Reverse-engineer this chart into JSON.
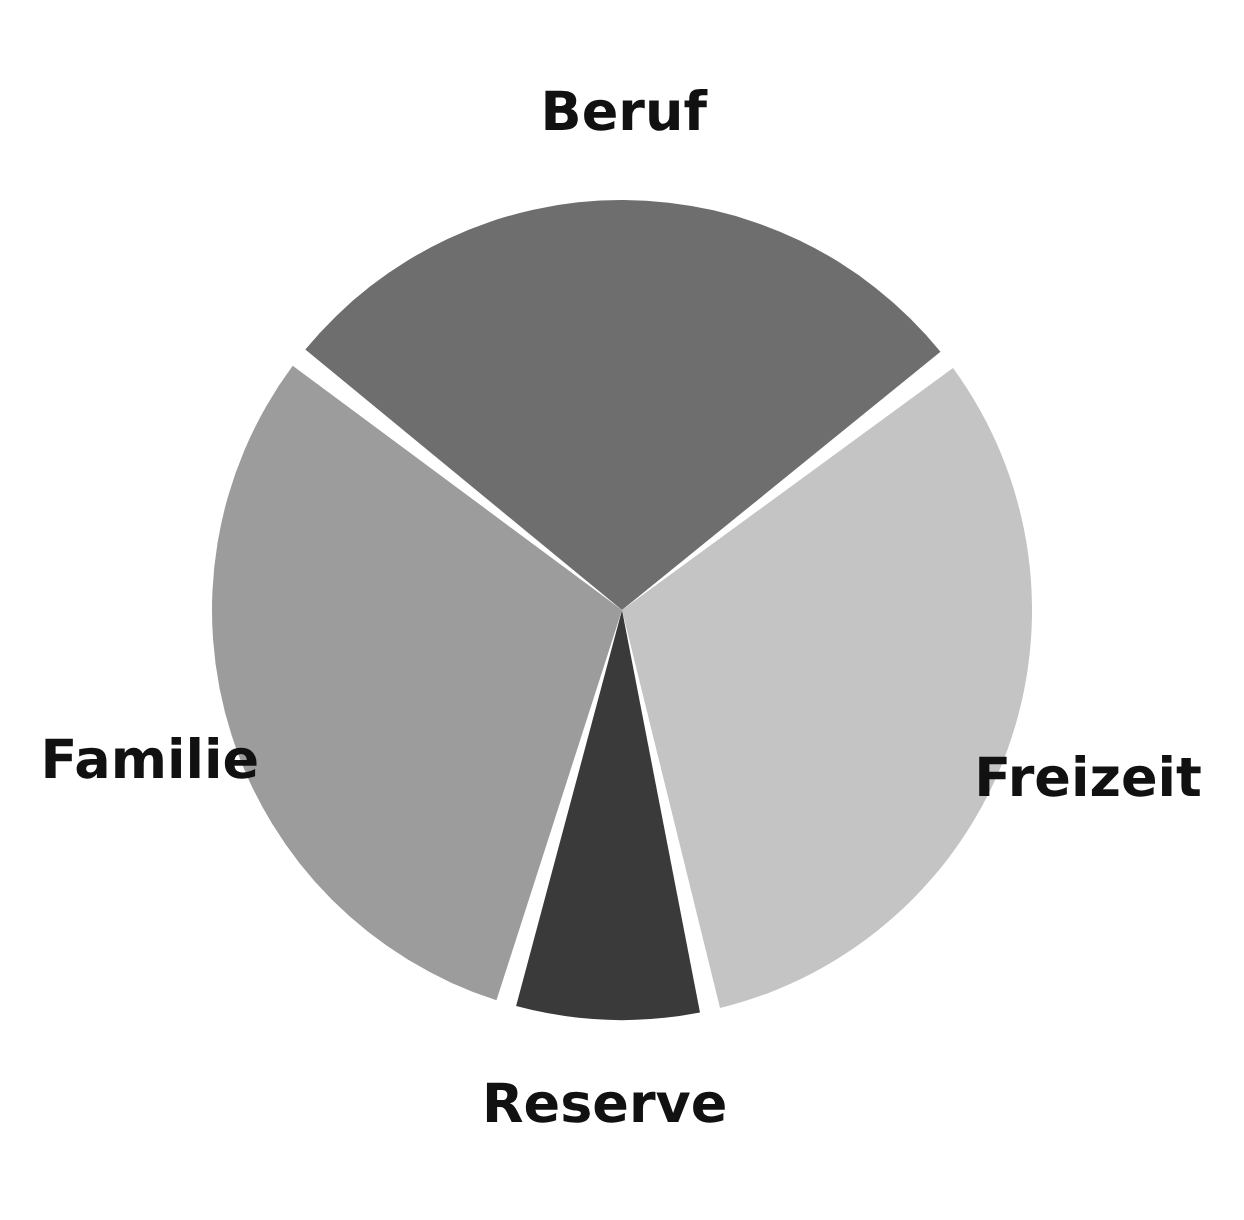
{
  "chart_data": {
    "type": "pie",
    "categories": [
      "Beruf",
      "Freizeit",
      "Reserve",
      "Familie"
    ],
    "values": [
      29,
      32,
      8,
      31
    ],
    "colors": [
      "#6e6e6e",
      "#c4c4c4",
      "#3a3a3a",
      "#9c9c9c"
    ],
    "legend": false
  }
}
